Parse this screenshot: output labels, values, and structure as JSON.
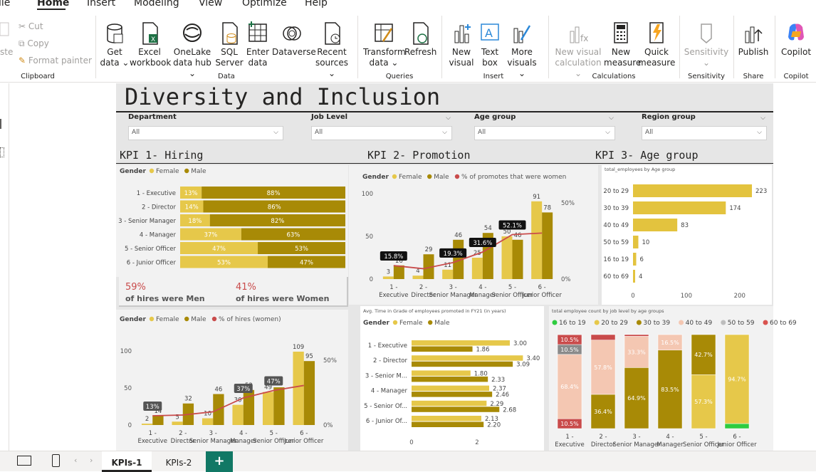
{
  "menu": {
    "file": "ile",
    "home": "Home",
    "insert": "Insert",
    "modeling": "Modeling",
    "view": "View",
    "optimize": "Optimize",
    "help": "Help"
  },
  "ribbon": {
    "clipboard": {
      "paste": "ste",
      "cut": "Cut",
      "copy": "Copy",
      "format_painter": "Format painter",
      "group": "Clipboard"
    },
    "data": {
      "get_data": [
        "Get",
        "data ⌄"
      ],
      "excel": [
        "Excel",
        "workbook"
      ],
      "onelake": [
        "OneLake",
        "data hub ⌄"
      ],
      "sql": [
        "SQL",
        "Server"
      ],
      "enter": [
        "Enter",
        "data"
      ],
      "dataverse": "Dataverse",
      "recent": [
        "Recent",
        "sources ⌄"
      ],
      "group": "Data"
    },
    "queries": {
      "transform": [
        "Transform",
        "data ⌄"
      ],
      "refresh": "Refresh",
      "group": "Queries"
    },
    "insert": {
      "new_visual": [
        "New",
        "visual"
      ],
      "text_box": [
        "Text",
        "box"
      ],
      "more_visuals": [
        "More",
        "visuals ⌄"
      ],
      "group": "Insert"
    },
    "calculations": {
      "new_visual_calc": [
        "New visual",
        "calculation ⌄"
      ],
      "new_measure": [
        "New",
        "measure"
      ],
      "quick_measure": [
        "Quick",
        "measure"
      ],
      "group": "Calculations"
    },
    "sensitivity": {
      "label": "Sensitivity",
      "sub": "⌄",
      "group": "Sensitivity"
    },
    "share": {
      "publish": "Publish",
      "group": "Share"
    },
    "copilot": {
      "label": "Copilot",
      "group": "Copilot"
    }
  },
  "report": {
    "title": "Diversity and Inclusion",
    "slicers": [
      {
        "label": "Department",
        "value": "All"
      },
      {
        "label": "Job Level",
        "value": "All"
      },
      {
        "label": "Age group",
        "value": "All"
      },
      {
        "label": "Region group",
        "value": "All"
      }
    ],
    "kpis": [
      "KPI 1- Hiring",
      "KPI 2- Promotion",
      "KPI 3- Age group"
    ],
    "hiring_summary": {
      "men_pct": "59%",
      "men_text": "of hires were Men",
      "women_pct": "41%",
      "women_text": "of hires were Women"
    }
  },
  "colors": {
    "female": "#e6c84a",
    "male": "#a88a06",
    "line": "#c94b4b",
    "green": "#2ecc40",
    "salmon": "#f4c7b2",
    "grey": "#bdbdbd",
    "red": "#d9534f",
    "bar": "#e3c33e"
  },
  "chart_data": [
    {
      "id": "hiring_100pct",
      "type": "bar",
      "legend_title": "Gender",
      "legend": [
        "Female",
        "Male"
      ],
      "categories": [
        "1 - Executive",
        "2 - Director",
        "3 - Senior Manager",
        "4 - Manager",
        "5 - Senior Officer",
        "6 - Junior Officer"
      ],
      "series": [
        {
          "name": "Female",
          "values": [
            13,
            14,
            18,
            37,
            47,
            53
          ]
        },
        {
          "name": "Male",
          "values": [
            88,
            86,
            82,
            63,
            53,
            47
          ]
        }
      ]
    },
    {
      "id": "promotion",
      "type": "bar",
      "legend_title": "Gender",
      "legend": [
        "Female",
        "Male",
        "% of promotes that were women"
      ],
      "categories": [
        "1 - Executive",
        "2 - Director",
        "3 - Senior Manager",
        "4 - Manager",
        "5 - Senior Officer",
        "6 - Junior Officer"
      ],
      "series": [
        {
          "name": "Female",
          "values": [
            3,
            4,
            11,
            25,
            50,
            91
          ]
        },
        {
          "name": "Male",
          "values": [
            16,
            29,
            46,
            54,
            46,
            78
          ]
        },
        {
          "name": "% of promotes that were women",
          "values": [
            15.8,
            null,
            19.3,
            31.6,
            52.1,
            null
          ]
        }
      ],
      "line_labels": [
        "15.8%",
        "19.3%",
        "31.6%",
        "52.1%"
      ],
      "y_ticks": [
        "100",
        "50",
        "0"
      ],
      "y2_ticks": [
        "50%",
        "0%"
      ]
    },
    {
      "id": "age_group",
      "type": "bar",
      "title": "total_employees by Age group",
      "categories": [
        "20 to 29",
        "30 to 39",
        "40 to 49",
        "50 to 59",
        "16 to 19",
        "60 to 69"
      ],
      "values": [
        223,
        174,
        83,
        10,
        6,
        4
      ],
      "x_ticks": [
        "0",
        "100",
        "200"
      ],
      "xlim": [
        0,
        235
      ]
    },
    {
      "id": "hires_count",
      "type": "bar",
      "legend_title": "Gender",
      "legend": [
        "Female",
        "Male",
        "% of hires (women)"
      ],
      "categories": [
        "1 - Executive",
        "2 - Director",
        "3 - Senior Manager",
        "4 - Manager",
        "5 - Senior Officer",
        "6 - Junior Officer"
      ],
      "series": [
        {
          "name": "Female",
          "values": [
            2,
            5,
            10,
            30,
            49,
            109
          ]
        },
        {
          "name": "Male",
          "values": [
            14,
            32,
            46,
            52,
            56,
            95
          ]
        },
        {
          "name": "% of hires (women)",
          "values": [
            13,
            null,
            null,
            37,
            47,
            null
          ]
        }
      ],
      "line_labels": [
        "13%",
        "37%",
        "47%"
      ],
      "y_ticks": [
        "100",
        "50",
        "0"
      ],
      "y2_ticks": [
        "50%",
        "0%"
      ]
    },
    {
      "id": "avg_time",
      "type": "bar",
      "title": "Avg. Time in Grade of employees promoted in FY21 (in years)",
      "legend_title": "Gender",
      "legend": [
        "Female",
        "Male"
      ],
      "categories": [
        "1 - Executive",
        "2 - Director",
        "3 - Senior M...",
        "4 - Manager",
        "5 - Senior Of...",
        "6 - Junior Of..."
      ],
      "series": [
        {
          "name": "Female",
          "values": [
            3.0,
            3.4,
            1.8,
            2.37,
            2.29,
            2.13
          ]
        },
        {
          "name": "Male",
          "values": [
            1.86,
            3.09,
            2.33,
            2.46,
            2.68,
            2.2
          ]
        }
      ],
      "x_ticks": [
        "0",
        "2"
      ]
    },
    {
      "id": "age_by_level",
      "type": "bar",
      "title": "total employee count by job level by age groups",
      "legend": [
        "16 to 19",
        "20 to 29",
        "30 to 39",
        "40 to 49",
        "50 to 59",
        "60 to 69"
      ],
      "categories": [
        "1 - Executive",
        "2 - Director",
        "3 - Senior Manager",
        "4 - Manager",
        "5 - Senior Officer",
        "6 - Junior Officer"
      ],
      "labels": [
        [
          "10.5%",
          "10.5%",
          "68.4%",
          "10.5%"
        ],
        [
          "57.8%",
          "36.4%"
        ],
        [
          "33.3%",
          "64.9%"
        ],
        [
          "16.5%",
          "83.5%"
        ],
        [
          "42.7%",
          "57.3%"
        ],
        [
          "94.7%"
        ]
      ]
    }
  ],
  "tabs": [
    "KPIs-1",
    "KPIs-2",
    "+"
  ]
}
